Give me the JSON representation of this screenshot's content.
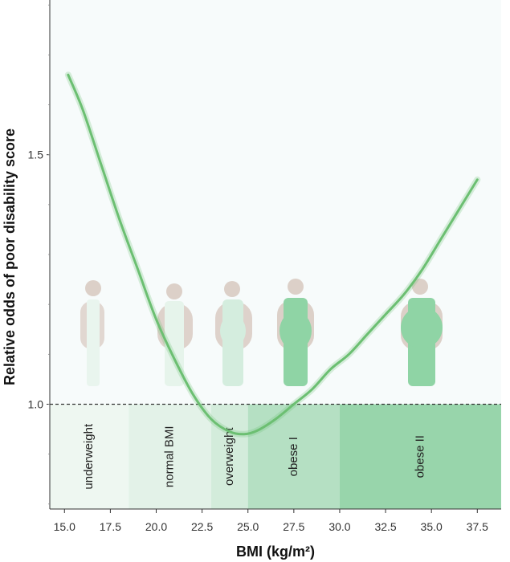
{
  "chart_data": {
    "type": "line",
    "title": "",
    "xlabel": "BMI (kg/m²)",
    "ylabel": "Relative odds of poor disability score",
    "xlim": [
      14.2,
      38.8
    ],
    "ylim": [
      0.79,
      1.81
    ],
    "x_ticks": [
      15.0,
      17.5,
      20.0,
      22.5,
      25.0,
      27.5,
      30.0,
      32.5,
      35.0,
      37.5
    ],
    "x_tick_labels": [
      "15.0",
      "17.5",
      "20.0",
      "22.5",
      "25.0",
      "27.5",
      "30.0",
      "32.5",
      "35.0",
      "37.5"
    ],
    "y_ticks": [
      1.0,
      1.5
    ],
    "y_tick_labels": [
      "1.0",
      "1.5"
    ],
    "reference_line": 1.0,
    "grid": false,
    "categories": [
      {
        "label": "underweight",
        "x_range": [
          14.2,
          18.5
        ],
        "color": "#eef7f1"
      },
      {
        "label": "normal BMI",
        "x_range": [
          18.5,
          23.0
        ],
        "color": "#e3f2e8"
      },
      {
        "label": "overweight",
        "x_range": [
          23.0,
          25.0
        ],
        "color": "#d3ecdb"
      },
      {
        "label": "obese I",
        "x_range": [
          25.0,
          30.0
        ],
        "color": "#b5e0c3"
      },
      {
        "label": "obese II",
        "x_range": [
          30.0,
          38.8
        ],
        "color": "#98d5ab"
      }
    ],
    "series": [
      {
        "color": "#6cbf72",
        "x": [
          15.2,
          16.0,
          17.0,
          18.0,
          19.0,
          20.0,
          21.0,
          22.0,
          23.0,
          24.0,
          24.8,
          25.5,
          26.5,
          27.5,
          28.5,
          29.5,
          30.5,
          31.5,
          32.5,
          33.5,
          34.5,
          35.5,
          36.5,
          37.5
        ],
        "y": [
          1.66,
          1.59,
          1.48,
          1.37,
          1.27,
          1.17,
          1.09,
          1.02,
          0.97,
          0.945,
          0.94,
          0.947,
          0.97,
          1.0,
          1.03,
          1.07,
          1.1,
          1.14,
          1.18,
          1.22,
          1.27,
          1.33,
          1.39,
          1.45
        ]
      }
    ]
  }
}
